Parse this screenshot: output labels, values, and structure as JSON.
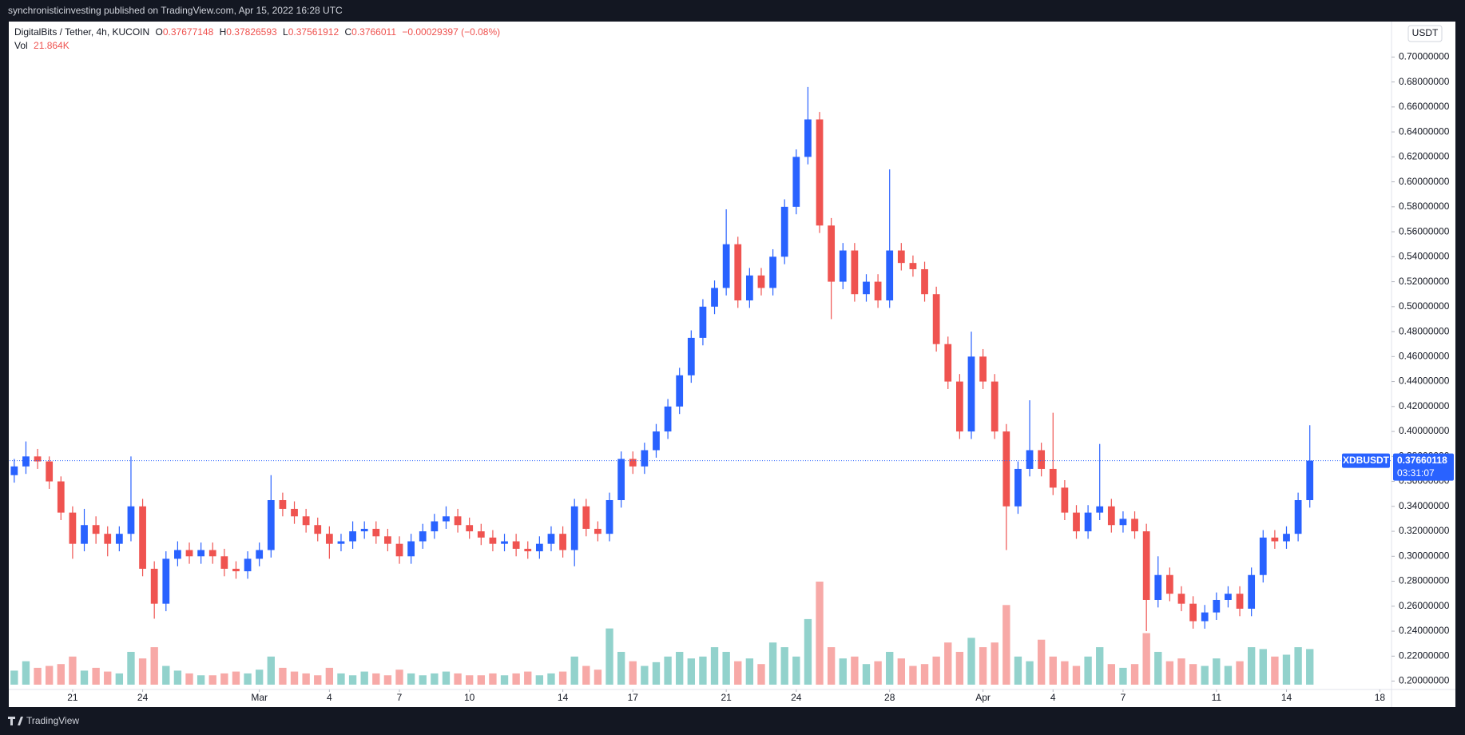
{
  "top_bar": {
    "text": "synchronisticinvesting published on TradingView.com, Apr 15, 2022 16:28 UTC"
  },
  "legend": {
    "symbol": "DigitalBits / Tether, 4h, KUCOIN",
    "ohlc": [
      {
        "key": "O",
        "value": 0.37677148
      },
      {
        "key": "H",
        "value": 0.37826593
      },
      {
        "key": "L",
        "value": 0.37561912
      },
      {
        "key": "C",
        "value": 0.3766011
      }
    ],
    "change": "−0.00029397 (−0.08%)",
    "vol_key": "Vol",
    "vol_value": "21.864K"
  },
  "footer": {
    "brand": "TradingView"
  },
  "chart_data": {
    "type": "candlestick",
    "currency": "USDT",
    "symbol_tag": "XDBUSDT",
    "countdown": "03:31:07",
    "up_color": "#2962ff",
    "down_color": "#ef5350",
    "volume_up_color": "#26a69a",
    "volume_down_color": "#ef5350",
    "grid": false,
    "ylim": [
      0.1933,
      0.7284
    ],
    "yticks": [
      {
        "value": 0.2,
        "label": "0.20000000"
      },
      {
        "value": 0.22,
        "label": "0.22000000"
      },
      {
        "value": 0.24,
        "label": "0.24000000"
      },
      {
        "value": 0.26,
        "label": "0.26000000"
      },
      {
        "value": 0.28,
        "label": "0.28000000"
      },
      {
        "value": 0.3,
        "label": "0.30000000"
      },
      {
        "value": 0.32,
        "label": "0.32000000"
      },
      {
        "value": 0.34,
        "label": "0.34000000"
      },
      {
        "value": 0.36,
        "label": "0.36000000"
      },
      {
        "value": 0.38,
        "label": "0.38000000"
      },
      {
        "value": 0.4,
        "label": "0.40000000"
      },
      {
        "value": 0.42,
        "label": "0.42000000"
      },
      {
        "value": 0.44,
        "label": "0.44000000"
      },
      {
        "value": 0.46,
        "label": "0.46000000"
      },
      {
        "value": 0.48,
        "label": "0.48000000"
      },
      {
        "value": 0.5,
        "label": "0.50000000"
      },
      {
        "value": 0.52,
        "label": "0.52000000"
      },
      {
        "value": 0.54,
        "label": "0.54000000"
      },
      {
        "value": 0.56,
        "label": "0.56000000"
      },
      {
        "value": 0.58,
        "label": "0.58000000"
      },
      {
        "value": 0.6,
        "label": "0.60000000"
      },
      {
        "value": 0.62,
        "label": "0.62000000"
      },
      {
        "value": 0.64,
        "label": "0.64000000"
      },
      {
        "value": 0.66,
        "label": "0.66000000"
      },
      {
        "value": 0.68,
        "label": "0.68000000"
      },
      {
        "value": 0.7,
        "label": "0.70000000"
      }
    ],
    "xlim": [
      -0.4,
      118
    ],
    "xticks": [
      {
        "value": 5,
        "label": "21"
      },
      {
        "value": 11,
        "label": "24"
      },
      {
        "value": 21,
        "label": "Mar"
      },
      {
        "value": 27,
        "label": "4"
      },
      {
        "value": 33,
        "label": "7"
      },
      {
        "value": 39,
        "label": "10"
      },
      {
        "value": 47,
        "label": "14"
      },
      {
        "value": 53,
        "label": "17"
      },
      {
        "value": 61,
        "label": "21"
      },
      {
        "value": 67,
        "label": "24"
      },
      {
        "value": 75,
        "label": "28"
      },
      {
        "value": 83,
        "label": "Apr"
      },
      {
        "value": 89,
        "label": "4"
      },
      {
        "value": 95,
        "label": "7"
      },
      {
        "value": 103,
        "label": "11"
      },
      {
        "value": 109,
        "label": "14"
      },
      {
        "value": 117,
        "label": "18"
      }
    ],
    "open": [
      0.365,
      0.372,
      0.38,
      0.376,
      0.36,
      0.335,
      0.31,
      0.325,
      0.318,
      0.31,
      0.318,
      0.34,
      0.29,
      0.262,
      0.298,
      0.305,
      0.3,
      0.305,
      0.3,
      0.29,
      0.288,
      0.298,
      0.305,
      0.345,
      0.338,
      0.332,
      0.325,
      0.318,
      0.31,
      0.312,
      0.32,
      0.322,
      0.316,
      0.31,
      0.3,
      0.312,
      0.32,
      0.328,
      0.332,
      0.325,
      0.32,
      0.315,
      0.31,
      0.312,
      0.306,
      0.304,
      0.31,
      0.318,
      0.305,
      0.34,
      0.322,
      0.318,
      0.345,
      0.378,
      0.372,
      0.385,
      0.4,
      0.42,
      0.445,
      0.475,
      0.5,
      0.515,
      0.55,
      0.505,
      0.525,
      0.515,
      0.54,
      0.58,
      0.62,
      0.65,
      0.565,
      0.52,
      0.545,
      0.51,
      0.52,
      0.505,
      0.545,
      0.535,
      0.53,
      0.51,
      0.47,
      0.44,
      0.4,
      0.46,
      0.44,
      0.4,
      0.34,
      0.37,
      0.385,
      0.37,
      0.355,
      0.335,
      0.32,
      0.335,
      0.34,
      0.325,
      0.33,
      0.32,
      0.265,
      0.285,
      0.27,
      0.262,
      0.248,
      0.255,
      0.265,
      0.27,
      0.258,
      0.285,
      0.315,
      0.312,
      0.318,
      0.345
    ],
    "high": [
      0.378,
      0.392,
      0.386,
      0.38,
      0.364,
      0.34,
      0.338,
      0.332,
      0.324,
      0.324,
      0.38,
      0.346,
      0.296,
      0.304,
      0.312,
      0.311,
      0.311,
      0.311,
      0.306,
      0.296,
      0.304,
      0.311,
      0.365,
      0.351,
      0.344,
      0.338,
      0.331,
      0.324,
      0.318,
      0.328,
      0.328,
      0.328,
      0.322,
      0.316,
      0.318,
      0.326,
      0.334,
      0.34,
      0.338,
      0.331,
      0.326,
      0.321,
      0.318,
      0.318,
      0.312,
      0.316,
      0.324,
      0.324,
      0.346,
      0.346,
      0.328,
      0.351,
      0.384,
      0.384,
      0.391,
      0.406,
      0.426,
      0.451,
      0.481,
      0.506,
      0.521,
      0.578,
      0.556,
      0.531,
      0.531,
      0.546,
      0.586,
      0.626,
      0.676,
      0.656,
      0.571,
      0.551,
      0.551,
      0.526,
      0.526,
      0.61,
      0.551,
      0.541,
      0.536,
      0.516,
      0.476,
      0.446,
      0.48,
      0.466,
      0.446,
      0.406,
      0.376,
      0.425,
      0.391,
      0.415,
      0.361,
      0.341,
      0.341,
      0.39,
      0.346,
      0.336,
      0.336,
      0.326,
      0.3,
      0.291,
      0.276,
      0.268,
      0.261,
      0.271,
      0.276,
      0.276,
      0.291,
      0.321,
      0.321,
      0.324,
      0.351,
      0.405
    ],
    "low": [
      0.359,
      0.366,
      0.37,
      0.354,
      0.329,
      0.298,
      0.304,
      0.31,
      0.3,
      0.304,
      0.312,
      0.284,
      0.25,
      0.256,
      0.292,
      0.294,
      0.294,
      0.294,
      0.284,
      0.282,
      0.282,
      0.292,
      0.299,
      0.332,
      0.326,
      0.319,
      0.312,
      0.298,
      0.304,
      0.306,
      0.314,
      0.31,
      0.304,
      0.294,
      0.294,
      0.306,
      0.314,
      0.322,
      0.319,
      0.314,
      0.309,
      0.304,
      0.304,
      0.3,
      0.298,
      0.298,
      0.304,
      0.299,
      0.292,
      0.316,
      0.312,
      0.312,
      0.339,
      0.366,
      0.366,
      0.379,
      0.394,
      0.414,
      0.439,
      0.469,
      0.494,
      0.509,
      0.499,
      0.499,
      0.509,
      0.509,
      0.534,
      0.574,
      0.614,
      0.559,
      0.49,
      0.514,
      0.504,
      0.504,
      0.499,
      0.499,
      0.529,
      0.524,
      0.504,
      0.464,
      0.434,
      0.394,
      0.394,
      0.434,
      0.394,
      0.305,
      0.334,
      0.364,
      0.364,
      0.349,
      0.329,
      0.314,
      0.314,
      0.329,
      0.319,
      0.319,
      0.314,
      0.24,
      0.259,
      0.264,
      0.256,
      0.242,
      0.242,
      0.249,
      0.259,
      0.252,
      0.252,
      0.279,
      0.306,
      0.306,
      0.312,
      0.339
    ],
    "close": [
      0.372,
      0.38,
      0.376,
      0.36,
      0.335,
      0.31,
      0.325,
      0.318,
      0.31,
      0.318,
      0.34,
      0.29,
      0.262,
      0.298,
      0.305,
      0.3,
      0.305,
      0.3,
      0.29,
      0.288,
      0.298,
      0.305,
      0.345,
      0.338,
      0.332,
      0.325,
      0.318,
      0.31,
      0.312,
      0.32,
      0.322,
      0.316,
      0.31,
      0.3,
      0.312,
      0.32,
      0.328,
      0.332,
      0.325,
      0.32,
      0.315,
      0.31,
      0.312,
      0.306,
      0.304,
      0.31,
      0.318,
      0.305,
      0.34,
      0.322,
      0.318,
      0.345,
      0.378,
      0.372,
      0.385,
      0.4,
      0.42,
      0.445,
      0.475,
      0.5,
      0.515,
      0.55,
      0.505,
      0.525,
      0.515,
      0.54,
      0.58,
      0.62,
      0.65,
      0.565,
      0.52,
      0.545,
      0.51,
      0.52,
      0.505,
      0.545,
      0.535,
      0.53,
      0.51,
      0.47,
      0.44,
      0.4,
      0.46,
      0.44,
      0.4,
      0.34,
      0.37,
      0.385,
      0.37,
      0.355,
      0.335,
      0.32,
      0.335,
      0.34,
      0.325,
      0.33,
      0.32,
      0.265,
      0.285,
      0.27,
      0.262,
      0.248,
      0.255,
      0.265,
      0.27,
      0.258,
      0.285,
      0.315,
      0.312,
      0.318,
      0.345,
      0.37660118
    ],
    "volume": [
      15,
      25,
      18,
      20,
      22,
      30,
      15,
      18,
      14,
      12,
      35,
      28,
      40,
      20,
      15,
      12,
      10,
      10,
      12,
      14,
      12,
      16,
      30,
      18,
      14,
      12,
      10,
      18,
      12,
      10,
      14,
      12,
      10,
      16,
      12,
      10,
      12,
      14,
      12,
      10,
      10,
      12,
      10,
      12,
      14,
      10,
      12,
      14,
      30,
      20,
      16,
      60,
      35,
      25,
      20,
      24,
      30,
      35,
      28,
      30,
      40,
      35,
      25,
      28,
      22,
      45,
      40,
      30,
      70,
      110,
      40,
      28,
      30,
      22,
      25,
      35,
      28,
      20,
      22,
      30,
      45,
      35,
      50,
      40,
      45,
      85,
      30,
      25,
      48,
      30,
      25,
      20,
      30,
      40,
      22,
      18,
      22,
      55,
      35,
      25,
      28,
      22,
      20,
      28,
      20,
      25,
      40,
      38,
      30,
      32,
      40,
      38
    ]
  }
}
